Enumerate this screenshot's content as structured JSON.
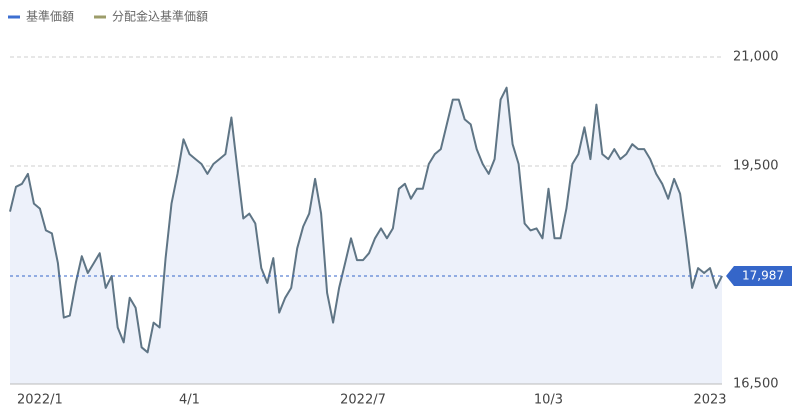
{
  "chart_data": {
    "type": "line",
    "series": [
      {
        "name": "基準価額",
        "color": "#5f7585",
        "legend_color": "#3d6fd1",
        "fill": "#edf1fa",
        "values": [
          18873,
          19214,
          19255,
          19391,
          18982,
          18914,
          18614,
          18573,
          18164,
          17414,
          17441,
          17891,
          18259,
          18027,
          18164,
          18300,
          17823,
          17986,
          17277,
          17073,
          17686,
          17550,
          17005,
          16936,
          17345,
          17277,
          18232,
          18982,
          19391,
          19868,
          19664,
          19595,
          19527,
          19391,
          19527,
          19595,
          19664,
          20168,
          19459,
          18777,
          18845,
          18709,
          18095,
          17891,
          18232,
          17482,
          17686,
          17823,
          18368,
          18668,
          18845,
          19323,
          18845,
          17755,
          17345,
          17823,
          18164,
          18505,
          18205,
          18205,
          18300,
          18505,
          18641,
          18505,
          18641,
          19186,
          19255,
          19050,
          19186,
          19186,
          19527,
          19664,
          19732,
          20073,
          20414,
          20414,
          20141,
          20073,
          19732,
          19527,
          19391,
          19595,
          20414,
          20577,
          19800,
          19527,
          18709,
          18614,
          18641,
          18505,
          19186,
          18505,
          18505,
          18914,
          19527,
          19664,
          20032,
          19595,
          20345,
          19664,
          19595,
          19732,
          19595,
          19664,
          19800,
          19732,
          19732,
          19595,
          19391,
          19255,
          19050,
          19323,
          19118,
          18505,
          17823,
          18095,
          18027,
          18095,
          17823,
          17987
        ]
      },
      {
        "name": "分配金込基準価額",
        "legend_color": "#9c9c6a"
      }
    ],
    "categories": [
      null,
      null,
      null,
      null,
      null,
      "2022/1",
      null,
      null,
      null,
      null,
      null,
      null,
      null,
      null,
      null,
      null,
      null,
      null,
      null,
      null,
      null,
      null,
      null,
      null,
      null,
      null,
      null,
      null,
      null,
      null,
      "4/1",
      null,
      null,
      null,
      null,
      null,
      null,
      null,
      null,
      null,
      null,
      null,
      null,
      null,
      null,
      null,
      null,
      null,
      null,
      null,
      null,
      null,
      null,
      null,
      null,
      null,
      null,
      null,
      null,
      "2022/7",
      null,
      null,
      null,
      null,
      null,
      null,
      null,
      null,
      null,
      null,
      null,
      null,
      null,
      null,
      null,
      null,
      null,
      null,
      null,
      null,
      null,
      null,
      null,
      null,
      null,
      null,
      null,
      null,
      null,
      null,
      "10/3",
      null,
      null,
      null,
      null,
      null,
      null,
      null,
      null,
      null,
      null,
      null,
      null,
      null,
      null,
      null,
      null,
      null,
      null,
      null,
      null,
      null,
      null,
      null,
      null,
      null,
      null,
      "2023",
      null,
      null
    ],
    "ylim": [
      16500,
      21000
    ],
    "yticks": [
      {
        "value": 16500,
        "label": "16,500"
      },
      {
        "value": 19500,
        "label": "19,500"
      },
      {
        "value": 21000,
        "label": "21,000"
      }
    ],
    "grid": true,
    "last_value": {
      "value": 17987,
      "label": "17,987",
      "color": "#3566c9"
    }
  }
}
